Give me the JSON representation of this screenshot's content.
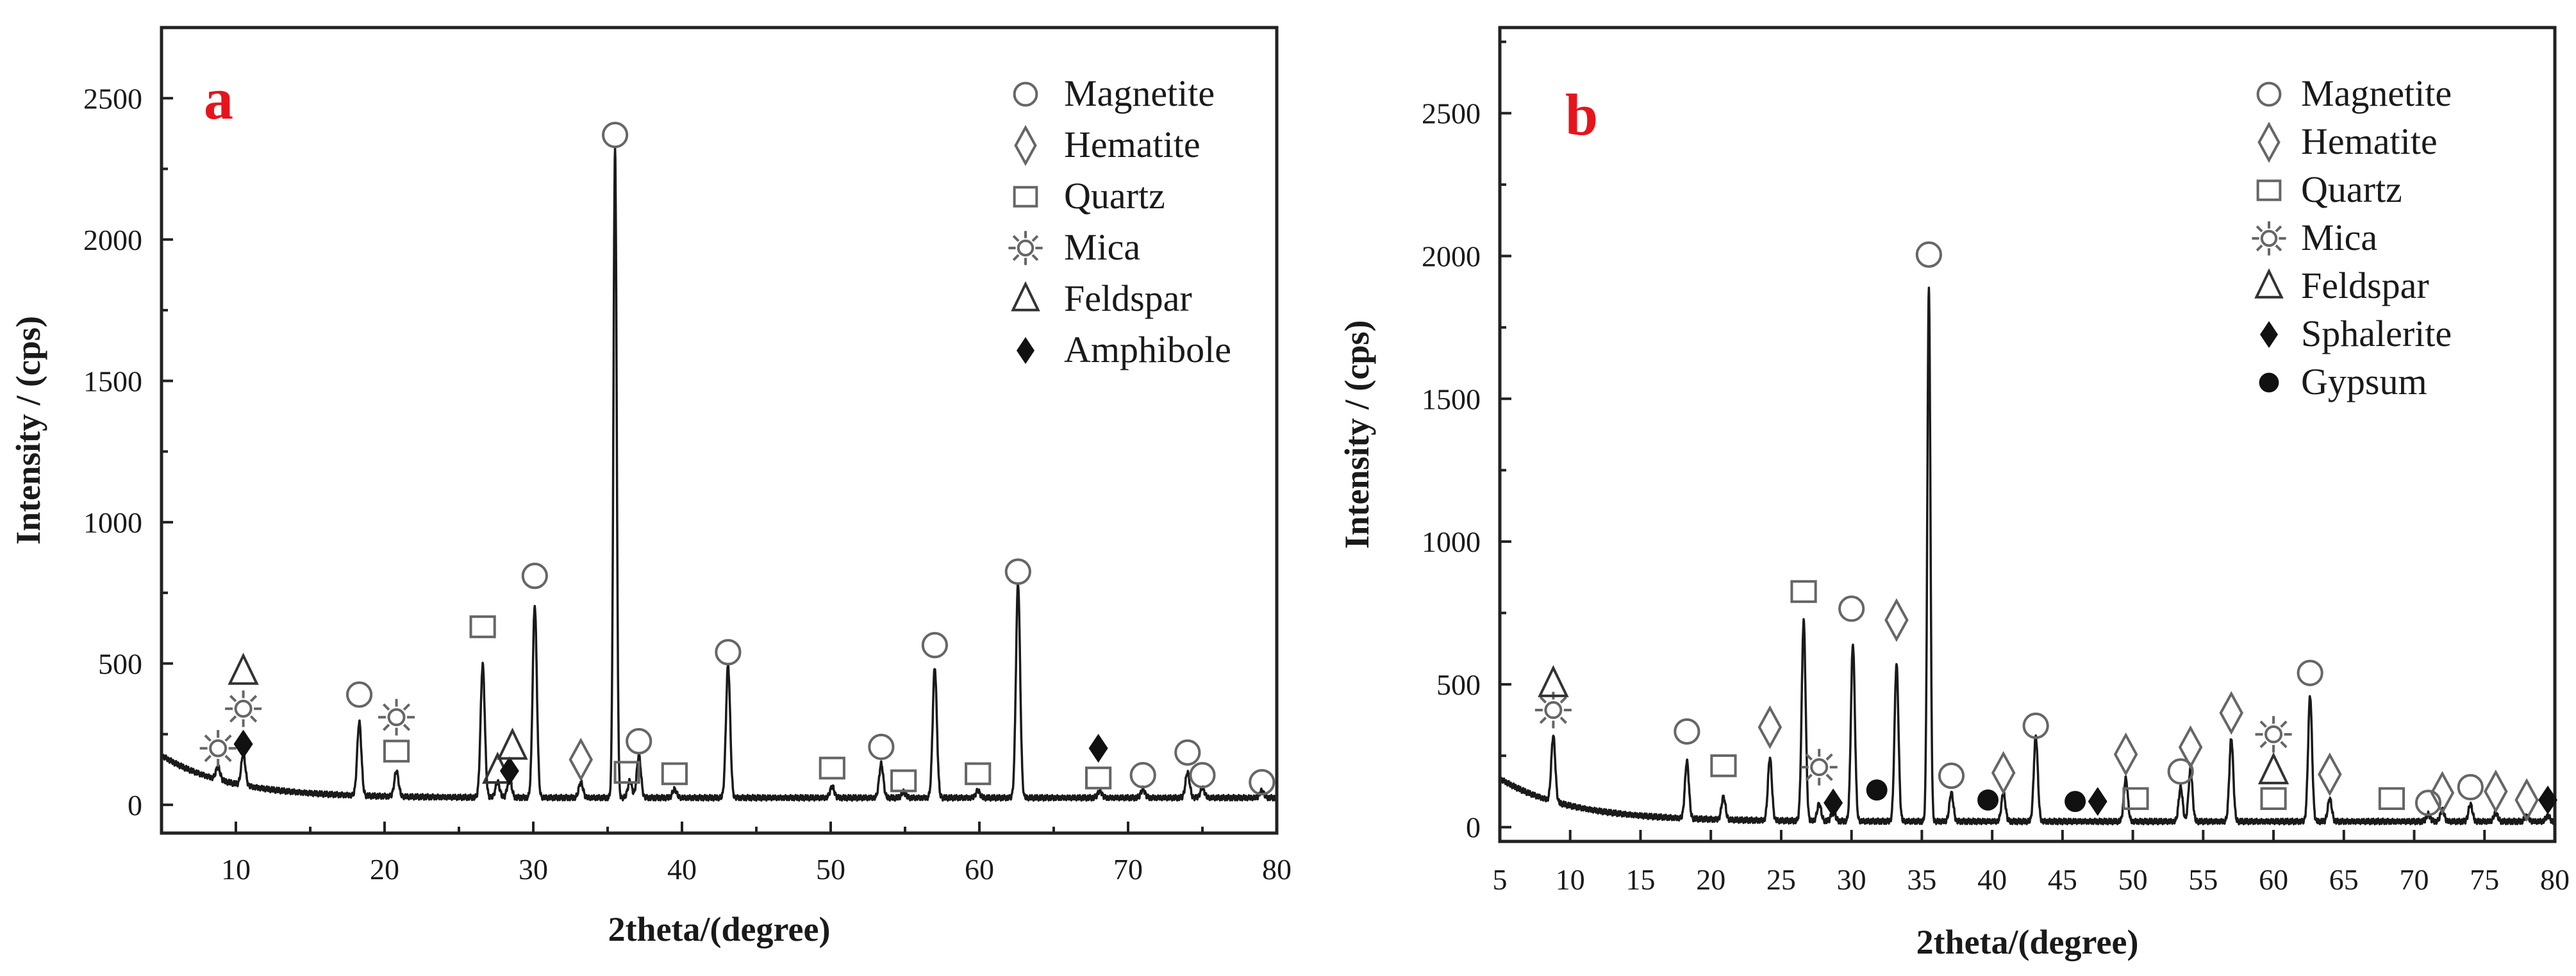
{
  "chart_data": [
    {
      "type": "line",
      "panel_label": "a",
      "xlabel": "2theta/(degree)",
      "ylabel": "Intensity / (cps)",
      "xlim": [
        5,
        80
      ],
      "ylim": [
        -100,
        2750
      ],
      "x_ticks": [
        10,
        20,
        30,
        40,
        50,
        60,
        70,
        80
      ],
      "y_ticks": [
        0,
        500,
        1000,
        1500,
        2000,
        2500
      ],
      "legend": [
        {
          "symbol": "circle",
          "name": "Magnetite"
        },
        {
          "symbol": "diamond",
          "name": "Hematite"
        },
        {
          "symbol": "square",
          "name": "Quartz"
        },
        {
          "symbol": "sun",
          "name": "Mica"
        },
        {
          "symbol": "triangle",
          "name": "Feldspar"
        },
        {
          "symbol": "filled-diamond",
          "name": "Amphibole"
        }
      ],
      "legend_position": "top-right",
      "background": {
        "b0": 25,
        "amp": 150,
        "decay": 4.5
      },
      "peaks": [
        {
          "x": 8.8,
          "y": 45
        },
        {
          "x": 10.5,
          "y": 110
        },
        {
          "x": 18.3,
          "y": 260
        },
        {
          "x": 20.8,
          "y": 90
        },
        {
          "x": 26.6,
          "y": 470
        },
        {
          "x": 27.6,
          "y": 55
        },
        {
          "x": 28.4,
          "y": 70
        },
        {
          "x": 30.1,
          "y": 680
        },
        {
          "x": 33.2,
          "y": 55
        },
        {
          "x": 35.5,
          "y": 2300
        },
        {
          "x": 36.5,
          "y": 60
        },
        {
          "x": 37.1,
          "y": 150
        },
        {
          "x": 39.5,
          "y": 30
        },
        {
          "x": 43.1,
          "y": 470
        },
        {
          "x": 50.1,
          "y": 40
        },
        {
          "x": 53.4,
          "y": 120
        },
        {
          "x": 54.9,
          "y": 20
        },
        {
          "x": 57.0,
          "y": 460
        },
        {
          "x": 59.9,
          "y": 25
        },
        {
          "x": 62.6,
          "y": 760
        },
        {
          "x": 68.1,
          "y": 25
        },
        {
          "x": 71.0,
          "y": 30
        },
        {
          "x": 74.0,
          "y": 90
        },
        {
          "x": 75.0,
          "y": 35
        },
        {
          "x": 79.0,
          "y": 25
        }
      ],
      "markers": [
        {
          "symbol": "sun",
          "x": 8.8,
          "y": 200
        },
        {
          "symbol": "filled-diamond",
          "x": 10.5,
          "y": 215
        },
        {
          "symbol": "sun",
          "x": 10.5,
          "y": 340
        },
        {
          "symbol": "triangle",
          "x": 10.5,
          "y": 470
        },
        {
          "symbol": "circle",
          "x": 18.3,
          "y": 390
        },
        {
          "symbol": "square",
          "x": 20.8,
          "y": 190
        },
        {
          "symbol": "sun",
          "x": 20.8,
          "y": 310
        },
        {
          "symbol": "square",
          "x": 26.6,
          "y": 630
        },
        {
          "symbol": "triangle",
          "x": 27.6,
          "y": 120
        },
        {
          "symbol": "filled-diamond",
          "x": 28.4,
          "y": 120
        },
        {
          "symbol": "triangle",
          "x": 28.6,
          "y": 205
        },
        {
          "symbol": "circle",
          "x": 30.1,
          "y": 810
        },
        {
          "symbol": "diamond",
          "x": 33.2,
          "y": 160
        },
        {
          "symbol": "circle",
          "x": 35.5,
          "y": 2370
        },
        {
          "symbol": "square",
          "x": 36.3,
          "y": 115
        },
        {
          "symbol": "circle",
          "x": 37.1,
          "y": 225
        },
        {
          "symbol": "square",
          "x": 39.5,
          "y": 110
        },
        {
          "symbol": "circle",
          "x": 43.1,
          "y": 540
        },
        {
          "symbol": "square",
          "x": 50.1,
          "y": 130
        },
        {
          "symbol": "circle",
          "x": 53.4,
          "y": 205
        },
        {
          "symbol": "square",
          "x": 54.9,
          "y": 85
        },
        {
          "symbol": "circle",
          "x": 57.0,
          "y": 565
        },
        {
          "symbol": "square",
          "x": 59.9,
          "y": 110
        },
        {
          "symbol": "circle",
          "x": 62.6,
          "y": 825
        },
        {
          "symbol": "square",
          "x": 68.0,
          "y": 95
        },
        {
          "symbol": "filled-diamond",
          "x": 68.0,
          "y": 200
        },
        {
          "symbol": "circle",
          "x": 71.0,
          "y": 105
        },
        {
          "symbol": "circle",
          "x": 74.0,
          "y": 185
        },
        {
          "symbol": "circle",
          "x": 75.0,
          "y": 105
        },
        {
          "symbol": "circle",
          "x": 79.0,
          "y": 80
        }
      ]
    },
    {
      "type": "line",
      "panel_label": "b",
      "xlabel": "2theta/(degree)",
      "ylabel": "Intensity / (cps)",
      "xlim": [
        5,
        80
      ],
      "ylim": [
        -50,
        2800
      ],
      "x_ticks": [
        5,
        10,
        15,
        20,
        25,
        30,
        35,
        40,
        45,
        50,
        55,
        60,
        65,
        70,
        75,
        80
      ],
      "y_ticks": [
        0,
        500,
        1000,
        1500,
        2000,
        2500
      ],
      "legend": [
        {
          "symbol": "circle",
          "name": "Magnetite"
        },
        {
          "symbol": "diamond",
          "name": "Hematite"
        },
        {
          "symbol": "square",
          "name": "Quartz"
        },
        {
          "symbol": "sun",
          "name": "Mica"
        },
        {
          "symbol": "triangle",
          "name": "Feldspar"
        },
        {
          "symbol": "filled-diamond",
          "name": "Sphalerite"
        },
        {
          "symbol": "filled-circle",
          "name": "Gypsum"
        }
      ],
      "legend_position": "top-right",
      "background": {
        "b0": 20,
        "amp": 150,
        "decay": 5
      },
      "peaks": [
        {
          "x": 8.8,
          "y": 230
        },
        {
          "x": 18.3,
          "y": 200
        },
        {
          "x": 20.9,
          "y": 80
        },
        {
          "x": 24.2,
          "y": 220
        },
        {
          "x": 26.6,
          "y": 700
        },
        {
          "x": 27.7,
          "y": 60
        },
        {
          "x": 28.7,
          "y": 40
        },
        {
          "x": 30.1,
          "y": 620
        },
        {
          "x": 33.2,
          "y": 550
        },
        {
          "x": 35.5,
          "y": 1870
        },
        {
          "x": 37.1,
          "y": 100
        },
        {
          "x": 40.8,
          "y": 100
        },
        {
          "x": 43.1,
          "y": 300
        },
        {
          "x": 49.5,
          "y": 150
        },
        {
          "x": 53.4,
          "y": 120
        },
        {
          "x": 54.1,
          "y": 180
        },
        {
          "x": 57.0,
          "y": 290
        },
        {
          "x": 62.6,
          "y": 440
        },
        {
          "x": 64.0,
          "y": 80
        },
        {
          "x": 71.0,
          "y": 25
        },
        {
          "x": 72.0,
          "y": 40
        },
        {
          "x": 74.0,
          "y": 60
        },
        {
          "x": 75.8,
          "y": 30
        },
        {
          "x": 78.0,
          "y": 20
        },
        {
          "x": 79.5,
          "y": 20
        }
      ],
      "markers": [
        {
          "symbol": "sun",
          "x": 8.8,
          "y": 410
        },
        {
          "symbol": "triangle",
          "x": 8.8,
          "y": 500
        },
        {
          "symbol": "circle",
          "x": 18.3,
          "y": 335
        },
        {
          "symbol": "square",
          "x": 20.9,
          "y": 215
        },
        {
          "symbol": "diamond",
          "x": 24.2,
          "y": 350
        },
        {
          "symbol": "square",
          "x": 26.6,
          "y": 825
        },
        {
          "symbol": "sun",
          "x": 27.7,
          "y": 210
        },
        {
          "symbol": "filled-diamond",
          "x": 28.7,
          "y": 85
        },
        {
          "symbol": "circle",
          "x": 30.0,
          "y": 765
        },
        {
          "symbol": "filled-circle",
          "x": 31.8,
          "y": 130
        },
        {
          "symbol": "diamond",
          "x": 33.2,
          "y": 725
        },
        {
          "symbol": "circle",
          "x": 35.5,
          "y": 2005
        },
        {
          "symbol": "circle",
          "x": 37.1,
          "y": 180
        },
        {
          "symbol": "filled-circle",
          "x": 39.7,
          "y": 95
        },
        {
          "symbol": "diamond",
          "x": 40.8,
          "y": 190
        },
        {
          "symbol": "circle",
          "x": 43.1,
          "y": 355
        },
        {
          "symbol": "filled-circle",
          "x": 45.9,
          "y": 90
        },
        {
          "symbol": "filled-diamond",
          "x": 47.5,
          "y": 90
        },
        {
          "symbol": "diamond",
          "x": 49.5,
          "y": 255
        },
        {
          "symbol": "square",
          "x": 50.2,
          "y": 100
        },
        {
          "symbol": "circle",
          "x": 53.4,
          "y": 195
        },
        {
          "symbol": "diamond",
          "x": 54.1,
          "y": 280
        },
        {
          "symbol": "diamond",
          "x": 57.0,
          "y": 400
        },
        {
          "symbol": "square",
          "x": 60.0,
          "y": 100
        },
        {
          "symbol": "triangle",
          "x": 60.0,
          "y": 195
        },
        {
          "symbol": "sun",
          "x": 60.0,
          "y": 325
        },
        {
          "symbol": "circle",
          "x": 62.6,
          "y": 540
        },
        {
          "symbol": "diamond",
          "x": 64.0,
          "y": 185
        },
        {
          "symbol": "square",
          "x": 68.4,
          "y": 100
        },
        {
          "symbol": "circle",
          "x": 71.0,
          "y": 85
        },
        {
          "symbol": "diamond",
          "x": 72.0,
          "y": 120
        },
        {
          "symbol": "circle",
          "x": 74.0,
          "y": 140
        },
        {
          "symbol": "diamond",
          "x": 75.8,
          "y": 125
        },
        {
          "symbol": "diamond",
          "x": 78.0,
          "y": 95
        },
        {
          "symbol": "filled-diamond",
          "x": 79.5,
          "y": 95
        }
      ]
    }
  ]
}
